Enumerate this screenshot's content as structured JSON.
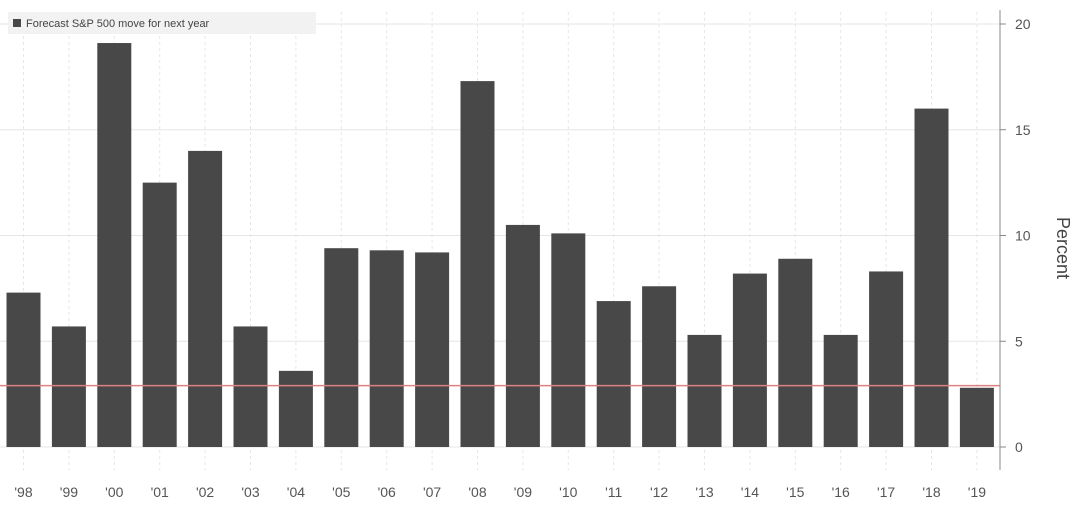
{
  "chart_data": {
    "type": "bar",
    "categories": [
      "'98",
      "'99",
      "'00",
      "'01",
      "'02",
      "'03",
      "'04",
      "'05",
      "'06",
      "'07",
      "'08",
      "'09",
      "'10",
      "'11",
      "'12",
      "'13",
      "'14",
      "'15",
      "'16",
      "'17",
      "'18",
      "'19"
    ],
    "series": [
      {
        "name": "Forecast S&P 500 move for next year",
        "values": [
          7.3,
          5.7,
          19.1,
          12.5,
          14.0,
          5.7,
          3.6,
          9.4,
          9.3,
          9.2,
          17.3,
          10.5,
          10.1,
          6.9,
          7.6,
          5.3,
          8.2,
          8.9,
          5.3,
          8.3,
          16.0,
          2.8
        ]
      }
    ],
    "reference_line": {
      "value": 2.9,
      "color": "#e08080"
    },
    "xlabel": "",
    "ylabel": "Percent",
    "ylim": [
      -1,
      20.5
    ],
    "yticks": [
      0,
      5,
      10,
      15,
      20
    ],
    "y_axis_position": "right",
    "grid": true,
    "legend": "top-left",
    "colors": {
      "bar": "#484848",
      "grid": "#e6e6e6",
      "axis": "#888888",
      "legend_bg": "#f2f2f2"
    }
  }
}
